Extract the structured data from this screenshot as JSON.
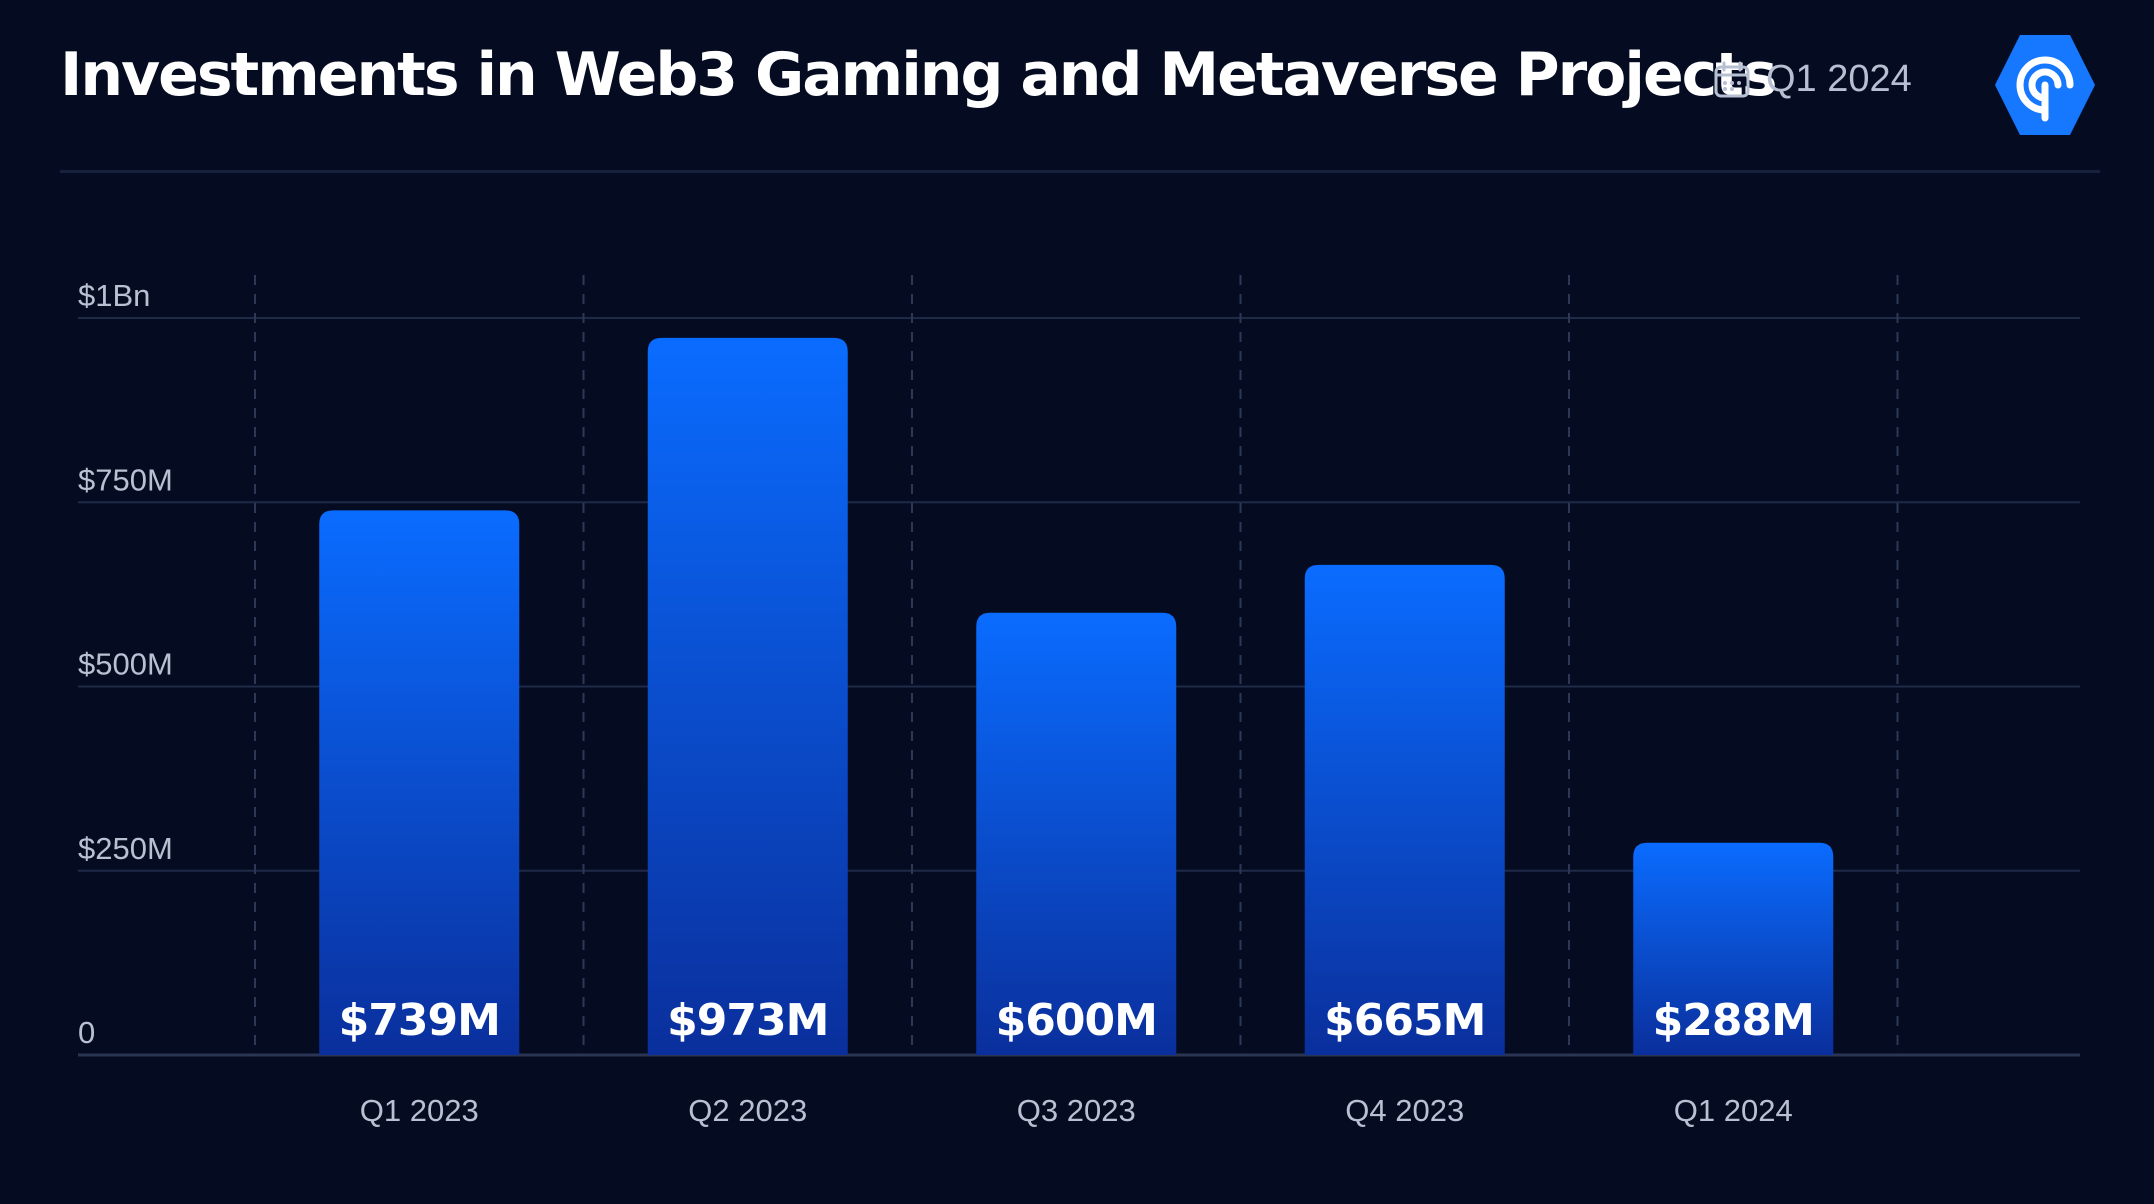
{
  "header": {
    "title": "Investments in Web3 Gaming and Metaverse Projects",
    "period": "Q1 2024",
    "calendar_icon": "calendar-icon",
    "logo_icon": "brand-logo-icon"
  },
  "colors": {
    "background": "#050c22",
    "bar_top": "#0a6cff",
    "bar_bottom": "#0a2f9c",
    "grid": "#1f2a47"
  },
  "chart_data": {
    "type": "bar",
    "title": "Investments in Web3 Gaming and Metaverse Projects",
    "categories": [
      "Q1 2023",
      "Q2 2023",
      "Q3 2023",
      "Q4 2023",
      "Q1 2024"
    ],
    "values": [
      739,
      973,
      600,
      665,
      288
    ],
    "data_labels": [
      "$739M",
      "$973M",
      "$600M",
      "$665M",
      "$288M"
    ],
    "value_unit": "M USD",
    "y_ticks": [
      {
        "value": 0,
        "label": "0"
      },
      {
        "value": 250,
        "label": "$250M"
      },
      {
        "value": 500,
        "label": "$500M"
      },
      {
        "value": 750,
        "label": "$750M"
      },
      {
        "value": 1000,
        "label": "$1Bn"
      }
    ],
    "ylim": [
      0,
      1000
    ],
    "xlabel": "",
    "ylabel": "",
    "grid": true,
    "legend": "none"
  }
}
